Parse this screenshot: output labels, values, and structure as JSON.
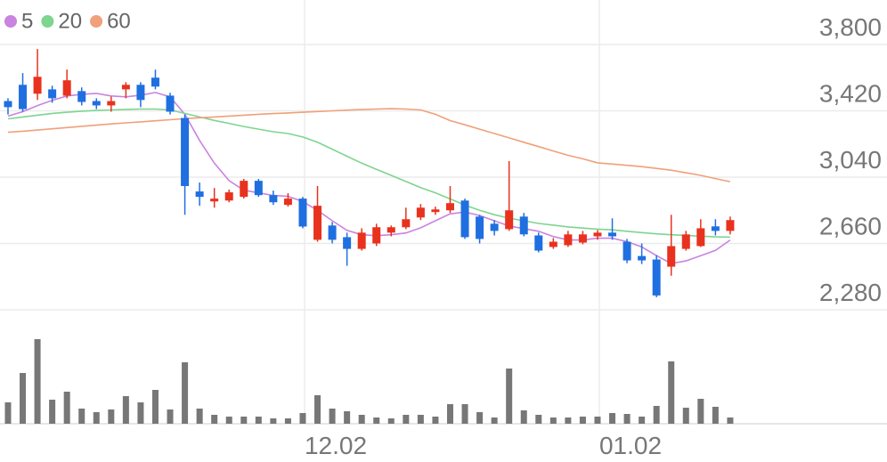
{
  "chart_data": {
    "type": "candlestick",
    "categories": [
      null,
      null,
      null,
      null,
      null,
      null,
      null,
      null,
      null,
      null,
      null,
      null,
      null,
      null,
      null,
      null,
      null,
      null,
      null,
      null,
      "12.02",
      null,
      null,
      null,
      null,
      null,
      null,
      null,
      null,
      null,
      null,
      null,
      null,
      null,
      null,
      null,
      null,
      null,
      null,
      null,
      "01.02",
      null,
      null,
      null,
      null,
      null,
      null,
      null,
      null,
      null
    ],
    "open": [
      3476,
      3569,
      3518,
      3543,
      3507,
      3533,
      3476,
      3451,
      3543,
      3569,
      3610,
      3507,
      3379,
      2958,
      2901,
      2906,
      2927,
      3019,
      2937,
      2881,
      2917,
      2681,
      2763,
      2696,
      2629,
      2660,
      2722,
      2753,
      2809,
      2840,
      2850,
      2906,
      2814,
      2773,
      2742,
      2814,
      2706,
      2640,
      2650,
      2665,
      2701,
      2722,
      2670,
      2588,
      2568,
      2527,
      2629,
      2645,
      2758,
      2732
    ],
    "high": [
      3492,
      3636,
      3774,
      3564,
      3656,
      3554,
      3492,
      3502,
      3584,
      3584,
      3656,
      3523,
      3399,
      3009,
      2978,
      2968,
      3030,
      3030,
      2963,
      2948,
      2927,
      2989,
      2783,
      2722,
      2747,
      2773,
      2763,
      2865,
      2886,
      2871,
      2989,
      2917,
      2824,
      2794,
      3132,
      2835,
      2722,
      2691,
      2732,
      2732,
      2737,
      2804,
      2686,
      2660,
      2593,
      2824,
      2732,
      2799,
      2799,
      2814
    ],
    "low": [
      3399,
      3415,
      3482,
      3466,
      3492,
      3451,
      3430,
      3415,
      3492,
      3441,
      3543,
      3399,
      2824,
      2876,
      2865,
      2896,
      2917,
      2927,
      2881,
      2871,
      2747,
      2670,
      2660,
      2532,
      2619,
      2645,
      2701,
      2742,
      2794,
      2824,
      2835,
      2686,
      2660,
      2706,
      2732,
      2701,
      2609,
      2629,
      2640,
      2655,
      2681,
      2681,
      2547,
      2542,
      2352,
      2475,
      2619,
      2640,
      2706,
      2712
    ],
    "close": [
      3441,
      3430,
      3615,
      3492,
      3595,
      3471,
      3451,
      3476,
      3569,
      3482,
      3559,
      3415,
      2989,
      2927,
      2917,
      2953,
      3019,
      2937,
      2896,
      2917,
      2757,
      2876,
      2681,
      2629,
      2722,
      2753,
      2753,
      2799,
      2865,
      2855,
      2891,
      2696,
      2686,
      2732,
      2850,
      2712,
      2619,
      2670,
      2712,
      2712,
      2722,
      2701,
      2563,
      2563,
      2362,
      2645,
      2712,
      2747,
      2732,
      2794
    ],
    "up_color": "#e8321e",
    "down_color": "#1f6fe0",
    "series": [
      {
        "name": "5",
        "color": "#c983e0",
        "values": [
          3390,
          3415,
          3450,
          3480,
          3505,
          3515,
          3520,
          3505,
          3500,
          3510,
          3525,
          3500,
          3400,
          3250,
          3120,
          3020,
          2965,
          2950,
          2935,
          2930,
          2900,
          2850,
          2790,
          2735,
          2710,
          2705,
          2710,
          2720,
          2750,
          2790,
          2830,
          2840,
          2820,
          2790,
          2760,
          2745,
          2730,
          2700,
          2680,
          2680,
          2690,
          2690,
          2670,
          2640,
          2590,
          2545,
          2560,
          2590,
          2620,
          2680
        ]
      },
      {
        "name": "20",
        "color": "#7dd58f",
        "values": [
          3374,
          3385,
          3395,
          3405,
          3412,
          3418,
          3422,
          3425,
          3428,
          3430,
          3430,
          3425,
          3405,
          3385,
          3365,
          3348,
          3330,
          3315,
          3300,
          3290,
          3270,
          3240,
          3200,
          3160,
          3120,
          3085,
          3050,
          3015,
          2980,
          2950,
          2915,
          2880,
          2850,
          2825,
          2805,
          2790,
          2775,
          2765,
          2755,
          2748,
          2742,
          2738,
          2730,
          2722,
          2715,
          2710,
          2706,
          2702,
          2698,
          2696
        ]
      },
      {
        "name": "60",
        "color": "#f0a07a",
        "values": [
          3297,
          3303,
          3310,
          3317,
          3324,
          3331,
          3338,
          3345,
          3351,
          3357,
          3363,
          3369,
          3375,
          3380,
          3385,
          3390,
          3395,
          3400,
          3404,
          3408,
          3412,
          3416,
          3420,
          3424,
          3427,
          3430,
          3432,
          3430,
          3425,
          3400,
          3364,
          3340,
          3315,
          3290,
          3265,
          3240,
          3215,
          3190,
          3165,
          3145,
          3122,
          3115,
          3108,
          3100,
          3090,
          3080,
          3065,
          3050,
          3032,
          3014
        ]
      }
    ],
    "volume": {
      "color": "#777777",
      "values": [
        24,
        57,
        95,
        27,
        36,
        17,
        13,
        16,
        31,
        24,
        38,
        16,
        69,
        17,
        10,
        8,
        8,
        8,
        6,
        6,
        12,
        32,
        17,
        14,
        10,
        7,
        6,
        10,
        10,
        8,
        22,
        22,
        13,
        7,
        62,
        15,
        10,
        7,
        7,
        8,
        8,
        12,
        11,
        8,
        20,
        70,
        18,
        28,
        19,
        7
      ]
    },
    "ylim": [
      2280,
      3800
    ],
    "yticks": [
      {
        "value": 2280,
        "label": "2,280"
      },
      {
        "value": 2660,
        "label": "2,660"
      },
      {
        "value": 3040,
        "label": "3,040"
      },
      {
        "value": 3420,
        "label": "3,420"
      },
      {
        "value": 3800,
        "label": "3,800"
      }
    ],
    "grid": true
  }
}
